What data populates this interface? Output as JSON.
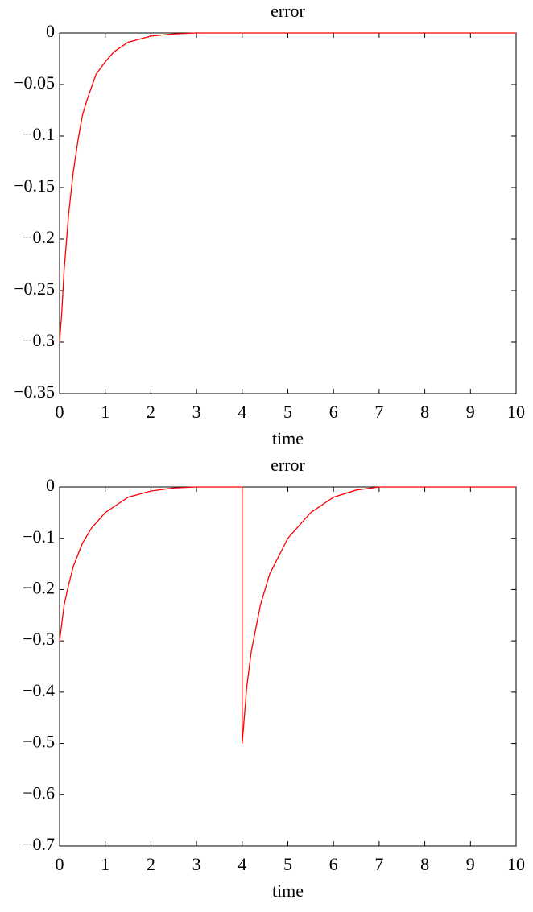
{
  "chart_data": [
    {
      "type": "line",
      "title": "error",
      "x_label": "time",
      "color": "#ff0000",
      "grid": false,
      "x": [
        0,
        0.05,
        0.1,
        0.2,
        0.3,
        0.4,
        0.5,
        0.6,
        0.8,
        1.0,
        1.2,
        1.5,
        2,
        2.5,
        3,
        10
      ],
      "values": [
        -0.3,
        -0.27,
        -0.23,
        -0.175,
        -0.135,
        -0.105,
        -0.08,
        -0.065,
        -0.04,
        -0.028,
        -0.018,
        -0.009,
        -0.003,
        -0.001,
        0,
        0
      ],
      "xlim": [
        0,
        10
      ],
      "xticks": [
        0,
        1,
        2,
        3,
        4,
        5,
        6,
        7,
        8,
        9,
        10
      ],
      "ylim": [
        -0.35,
        0
      ],
      "yticks": [
        0,
        {
          "value": -0.05,
          "label": "−0.05"
        },
        {
          "value": -0.1,
          "label": "−0.1"
        },
        {
          "value": -0.15,
          "label": "−0.15"
        },
        {
          "value": -0.2,
          "label": "−0.2"
        },
        {
          "value": -0.25,
          "label": "−0.25"
        },
        {
          "value": -0.3,
          "label": "−0.3"
        },
        {
          "value": -0.35,
          "label": "−0.35"
        }
      ]
    },
    {
      "type": "line",
      "title": "error",
      "x_label": "time",
      "color": "#ff0000",
      "grid": false,
      "x": [
        0,
        0.1,
        0.2,
        0.3,
        0.5,
        0.7,
        1,
        1.5,
        2,
        2.5,
        3,
        4,
        4,
        4.1,
        4.2,
        4.4,
        4.6,
        5,
        5.5,
        6,
        6.5,
        7,
        10
      ],
      "values": [
        -0.3,
        -0.23,
        -0.19,
        -0.155,
        -0.11,
        -0.08,
        -0.05,
        -0.02,
        -0.008,
        -0.002,
        0,
        0,
        -0.5,
        -0.39,
        -0.32,
        -0.23,
        -0.17,
        -0.1,
        -0.05,
        -0.02,
        -0.006,
        0,
        0
      ],
      "xlim": [
        0,
        10
      ],
      "xticks": [
        0,
        1,
        2,
        3,
        4,
        5,
        6,
        7,
        8,
        9,
        10
      ],
      "ylim": [
        -0.7,
        0
      ],
      "yticks": [
        0,
        {
          "value": -0.1,
          "label": "−0.1"
        },
        {
          "value": -0.2,
          "label": "−0.2"
        },
        {
          "value": -0.3,
          "label": "−0.3"
        },
        {
          "value": -0.4,
          "label": "−0.4"
        },
        {
          "value": -0.5,
          "label": "−0.5"
        },
        {
          "value": -0.6,
          "label": "−0.6"
        },
        {
          "value": -0.7,
          "label": "−0.7"
        }
      ]
    }
  ]
}
